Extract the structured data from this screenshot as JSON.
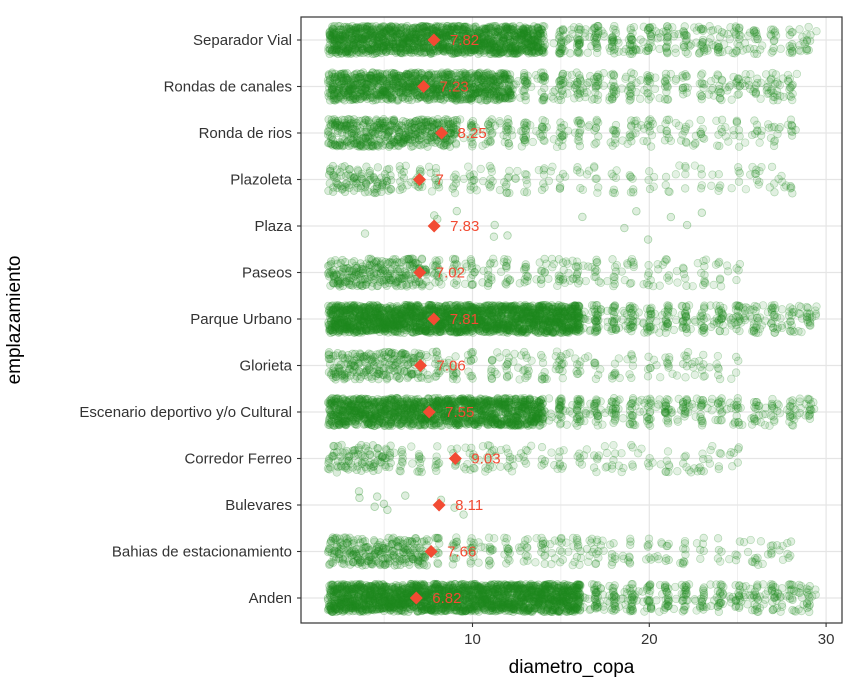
{
  "chart_data": {
    "type": "scatter",
    "xlabel": "diametro_copa",
    "ylabel": "emplazamiento",
    "xlim": [
      0.3,
      30.9
    ],
    "x_ticks": [
      10,
      20,
      30
    ],
    "x_minor_ticks": [
      5,
      15,
      25
    ],
    "grid": true,
    "colors": {
      "points": "#228B22",
      "mean": "#F24B33",
      "mean_label": "#F24B33",
      "grid": "#E5E5E5",
      "frame": "#333333"
    },
    "categories": [
      "Separador Vial",
      "Rondas de canales",
      "Ronda de rios",
      "Plazoleta",
      "Plaza",
      "Paseos",
      "Parque Urbano",
      "Glorieta",
      "Escenario deportivo y/o Cultural",
      "Corredor Ferreo",
      "Bulevares",
      "Bahias de estacionamiento",
      "Anden"
    ],
    "means": [
      7.82,
      7.23,
      8.25,
      7,
      7.83,
      7.02,
      7.81,
      7.06,
      7.55,
      9.03,
      8.11,
      7.66,
      6.82
    ],
    "mean_labels": [
      "7.82",
      "7.23",
      "8.25",
      "7",
      "7.83",
      "7.02",
      "7.81",
      "7.06",
      "7.55",
      "9.03",
      "8.11",
      "7.66",
      "6.82"
    ],
    "density": [
      0.9,
      0.8,
      0.6,
      0.35,
      0.05,
      0.5,
      1.0,
      0.45,
      0.9,
      0.35,
      0.03,
      0.5,
      1.0
    ],
    "xmax": [
      29.5,
      28.5,
      28.5,
      28,
      25,
      25,
      29.5,
      25,
      29.5,
      25,
      9.5,
      28,
      29.5
    ]
  }
}
